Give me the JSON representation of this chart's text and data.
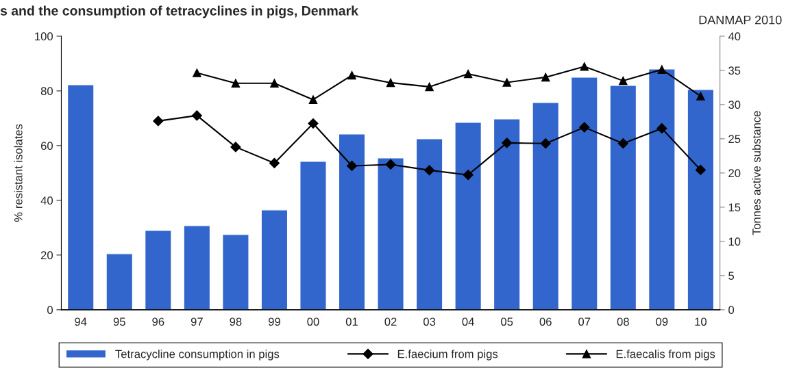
{
  "chart_data": {
    "type": "bar",
    "title": "s and the consumption of tetracyclines in pigs, Denmark",
    "annotations": [
      "DANMAP 2010"
    ],
    "ylabel": "% resistant isolates",
    "y2label": "Tonnes active substance",
    "categories": [
      "94",
      "95",
      "96",
      "97",
      "98",
      "99",
      "00",
      "01",
      "02",
      "03",
      "04",
      "05",
      "06",
      "07",
      "08",
      "09",
      "10"
    ],
    "series": [
      {
        "name": "Tetracycline consumption in pigs",
        "axis": "y2",
        "color": "#3366cc",
        "values": [
          32.9,
          8.2,
          11.6,
          12.3,
          11.0,
          14.6,
          21.7,
          25.7,
          22.2,
          25.0,
          27.4,
          27.9,
          30.3,
          34.0,
          32.8,
          35.2,
          32.2
        ]
      },
      {
        "name": "E.faecium from pigs",
        "type": "line",
        "color": "#000000",
        "marker": "diamond",
        "values": [
          null,
          null,
          69.0,
          71.0,
          59.5,
          53.6,
          68.1,
          52.6,
          53.1,
          51.0,
          49.3,
          61.0,
          60.8,
          66.7,
          60.8,
          66.3,
          51.1
        ]
      },
      {
        "name": "E.faecalis from pigs",
        "type": "line",
        "color": "#000000",
        "marker": "triangle",
        "values": [
          null,
          null,
          null,
          86.6,
          82.8,
          82.8,
          76.8,
          85.7,
          83.0,
          81.5,
          86.2,
          83.1,
          85.0,
          88.9,
          83.7,
          87.8,
          78.1
        ]
      }
    ],
    "ylim": [
      0,
      100
    ],
    "yticks": [
      0,
      20,
      40,
      60,
      80,
      100
    ],
    "y2lim": [
      0,
      40
    ],
    "y2ticks": [
      0,
      5,
      10,
      15,
      20,
      25,
      30,
      35,
      40
    ],
    "grid": false,
    "legend": "bottom"
  }
}
